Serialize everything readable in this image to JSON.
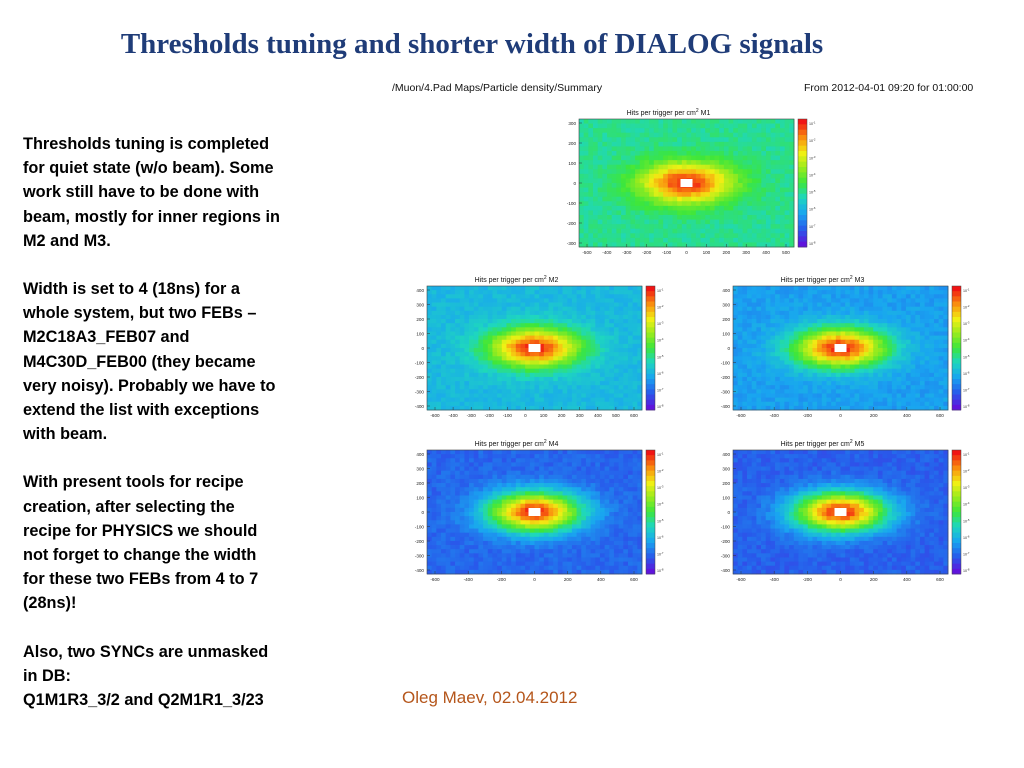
{
  "slide": {
    "title": "Thresholds tuning and shorter width of DIALOG signals",
    "paragraphs": [
      {
        "lines": [
          "Thresholds tuning is completed",
          "for quiet state (w/o beam). Some",
          "work still have to be done with",
          "beam, mostly for inner regions in",
          "M2 and M3."
        ]
      },
      {
        "lines": [
          "Width is set to 4 (18ns) for a",
          "whole system, but two FEBs –",
          "M2C18A3_FEB07 and",
          "M4C30D_FEB00 (they became",
          "very noisy). Probably we have to",
          "extend the list with exceptions",
          "with beam."
        ]
      },
      {
        "lines": [
          "With present tools for recipe",
          "creation, after selecting the",
          "recipe for PHYSICS we should",
          "not forget to change the width",
          "for these two FEBs from 4 to 7",
          "(28ns)!"
        ]
      },
      {
        "lines": [
          "Also, two SYNCs are unmasked",
          "in DB:",
          "Q1M1R3_3/2 and Q2M1R1_3/23"
        ]
      }
    ],
    "author": "Oleg Maev, 02.04.2012"
  },
  "figure": {
    "path": "/Muon/4.Pad Maps/Particle density/Summary",
    "time_range": "From 2012-04-01 09:20 for 01:00:00",
    "plots": [
      {
        "id": "M1",
        "title": "Hits per trigger per cm",
        "station": "M1",
        "bg": 0.42,
        "y_ticks": [
          "300",
          "200",
          "100",
          "0",
          "-100",
          "-200",
          "-300"
        ],
        "x_ticks": [
          "-500",
          "-400",
          "-300",
          "-200",
          "-100",
          "0",
          "100",
          "200",
          "300",
          "400",
          "500"
        ]
      },
      {
        "id": "M2",
        "title": "Hits per trigger per cm",
        "station": "M2",
        "bg": 0.3,
        "y_ticks": [
          "400",
          "300",
          "200",
          "100",
          "0",
          "-100",
          "-200",
          "-300",
          "-400"
        ],
        "x_ticks": [
          "-600",
          "-400",
          "-300",
          "-200",
          "-100",
          "0",
          "100",
          "200",
          "300",
          "400",
          "500",
          "600"
        ]
      },
      {
        "id": "M3",
        "title": "Hits per trigger per cm",
        "station": "M3",
        "bg": 0.24,
        "y_ticks": [
          "400",
          "300",
          "200",
          "100",
          "0",
          "-100",
          "-200",
          "-300",
          "-400"
        ],
        "x_ticks": [
          "-600",
          "-400",
          "-200",
          "0",
          "200",
          "400",
          "600"
        ]
      },
      {
        "id": "M4",
        "title": "Hits per trigger per cm",
        "station": "M4",
        "bg": 0.14,
        "y_ticks": [
          "400",
          "300",
          "200",
          "100",
          "0",
          "-100",
          "-200",
          "-300",
          "-400"
        ],
        "x_ticks": [
          "-600",
          "-400",
          "-200",
          "0",
          "200",
          "400",
          "600"
        ]
      },
      {
        "id": "M5",
        "title": "Hits per trigger per cm",
        "station": "M5",
        "bg": 0.13,
        "y_ticks": [
          "400",
          "300",
          "200",
          "100",
          "0",
          "-100",
          "-200",
          "-300",
          "-400"
        ],
        "x_ticks": [
          "-600",
          "-400",
          "-200",
          "0",
          "200",
          "400",
          "600"
        ]
      }
    ]
  },
  "colors": {
    "title": "#1f3c78",
    "author": "#b5561b",
    "hot_spot": "#ffffff"
  }
}
